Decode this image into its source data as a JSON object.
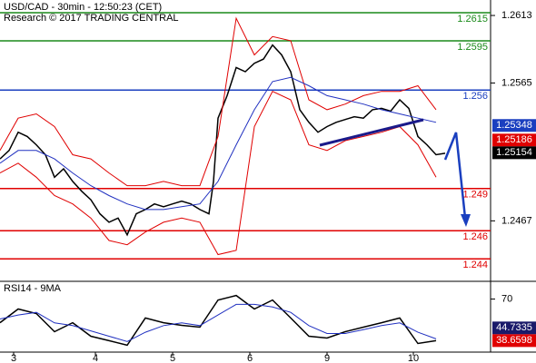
{
  "chart_data": [
    {
      "type": "line",
      "title": "USD/CAD - 30min - 12:50:23 (CET)",
      "subtitle": "Research © 2017 TRADING CENTRAL",
      "xlim": [
        0,
        108
      ],
      "ylim": [
        1.2424,
        1.2624
      ],
      "yticks": [
        1.2613,
        1.2565,
        1.2467
      ],
      "series": [
        {
          "name": "Price",
          "color": "#000000",
          "x": [
            0,
            2,
            4,
            6,
            8,
            10,
            12,
            14,
            16,
            18,
            20,
            22,
            24,
            26,
            28,
            30,
            32,
            34,
            36,
            38,
            40,
            42,
            44,
            46,
            47,
            48,
            50,
            52,
            54,
            56,
            58,
            60,
            62,
            64,
            66,
            68,
            70,
            72,
            74,
            76,
            78,
            80,
            82,
            84,
            86,
            88,
            90,
            92,
            94,
            96,
            98
          ],
          "values": [
            1.2511,
            1.2517,
            1.253,
            1.2527,
            1.2521,
            1.2514,
            1.2498,
            1.2504,
            1.2495,
            1.2488,
            1.2482,
            1.2472,
            1.2466,
            1.2469,
            1.2457,
            1.2472,
            1.2475,
            1.2479,
            1.2477,
            1.2479,
            1.2481,
            1.2479,
            1.2475,
            1.2472,
            1.2495,
            1.254,
            1.2556,
            1.2576,
            1.2573,
            1.2579,
            1.2582,
            1.2592,
            1.2585,
            1.2573,
            1.2546,
            1.2537,
            1.253,
            1.2534,
            1.2537,
            1.2539,
            1.2541,
            1.254,
            1.2546,
            1.2547,
            1.2545,
            1.2553,
            1.2547,
            1.2527,
            1.2521,
            1.2514,
            1.2515
          ]
        },
        {
          "name": "Upper band",
          "color": "#e00000",
          "x": [
            0,
            4,
            8,
            12,
            16,
            20,
            24,
            28,
            32,
            36,
            40,
            44,
            48,
            52,
            56,
            60,
            64,
            68,
            72,
            76,
            80,
            84,
            88,
            92,
            96
          ],
          "values": [
            1.2517,
            1.254,
            1.2543,
            1.2534,
            1.2514,
            1.2511,
            1.2501,
            1.2492,
            1.2492,
            1.2495,
            1.2492,
            1.2492,
            1.2527,
            1.2611,
            1.2585,
            1.2598,
            1.2595,
            1.2553,
            1.2546,
            1.255,
            1.2556,
            1.2559,
            1.2559,
            1.2563,
            1.2546
          ]
        },
        {
          "name": "Lower band",
          "color": "#e00000",
          "x": [
            0,
            4,
            8,
            12,
            16,
            20,
            24,
            28,
            32,
            36,
            40,
            44,
            48,
            52,
            56,
            60,
            64,
            68,
            72,
            76,
            80,
            84,
            88,
            92,
            96
          ],
          "values": [
            1.2501,
            1.2508,
            1.2498,
            1.2485,
            1.2479,
            1.2469,
            1.2453,
            1.245,
            1.2459,
            1.2466,
            1.2469,
            1.2466,
            1.2443,
            1.2446,
            1.2534,
            1.2559,
            1.2553,
            1.2521,
            1.2517,
            1.2524,
            1.2527,
            1.253,
            1.2534,
            1.2521,
            1.2498
          ]
        },
        {
          "name": "Moving average",
          "color": "#2030c0",
          "x": [
            0,
            4,
            8,
            12,
            16,
            20,
            24,
            28,
            32,
            36,
            40,
            44,
            48,
            52,
            56,
            60,
            64,
            68,
            72,
            76,
            80,
            84,
            88,
            92,
            96
          ],
          "values": [
            1.2508,
            1.2517,
            1.2517,
            1.2511,
            1.2501,
            1.2492,
            1.2485,
            1.2479,
            1.2475,
            1.2475,
            1.2477,
            1.2479,
            1.2495,
            1.2521,
            1.2546,
            1.2566,
            1.2569,
            1.2563,
            1.2556,
            1.2553,
            1.255,
            1.2546,
            1.2543,
            1.254,
            1.2537
          ]
        }
      ],
      "levels": [
        {
          "value": 1.2615,
          "color": "#1a8a1a"
        },
        {
          "value": 1.2595,
          "color": "#1a8a1a"
        },
        {
          "value": 1.256,
          "color": "#1a3fbf"
        },
        {
          "value": 1.249,
          "color": "#e00000"
        },
        {
          "value": 1.246,
          "color": "#e00000"
        },
        {
          "value": 1.244,
          "color": "#e00000"
        }
      ],
      "price_tags": [
        {
          "value": 1.25348,
          "color": "#1a3fbf"
        },
        {
          "value": 1.25186,
          "color": "#e00000"
        },
        {
          "value": 1.25154,
          "color": "#000000"
        }
      ]
    },
    {
      "type": "line",
      "title": "RSI14 - 9MA",
      "xlim": [
        0,
        108
      ],
      "ylim": [
        30,
        82
      ],
      "yticks": [
        70
      ],
      "xticks": [
        {
          "value": 3,
          "label": "3"
        },
        {
          "value": 21,
          "label": "4"
        },
        {
          "value": 38,
          "label": "5"
        },
        {
          "value": 55,
          "label": "6"
        },
        {
          "value": 72,
          "label": "9"
        },
        {
          "value": 91,
          "label": "10"
        }
      ],
      "series": [
        {
          "name": "RSI14",
          "color": "#000000",
          "x": [
            0,
            4,
            8,
            12,
            16,
            20,
            24,
            28,
            32,
            36,
            40,
            44,
            48,
            52,
            56,
            60,
            64,
            68,
            72,
            76,
            80,
            84,
            88,
            92,
            96
          ],
          "values": [
            52.2,
            62.5,
            59.1,
            45.4,
            52.2,
            42.0,
            38.6,
            35.2,
            55.7,
            52.2,
            50.2,
            48.8,
            69.3,
            72.7,
            62.5,
            69.3,
            55.7,
            42.0,
            40.6,
            45.4,
            48.8,
            52.2,
            55.7,
            36.5,
            38.6
          ]
        },
        {
          "name": "9MA",
          "color": "#2030c0",
          "x": [
            0,
            4,
            8,
            12,
            16,
            20,
            24,
            28,
            32,
            36,
            40,
            44,
            48,
            52,
            56,
            60,
            64,
            68,
            72,
            76,
            80,
            84,
            88,
            92,
            96
          ],
          "values": [
            55,
            58,
            60,
            52,
            50,
            46,
            42,
            38,
            45,
            50,
            52,
            50,
            58,
            66,
            66,
            64,
            60,
            50,
            44,
            44,
            47,
            50,
            52,
            45,
            40
          ]
        }
      ],
      "price_tags": [
        {
          "value": 44.7335,
          "color": "#1a1a6a"
        },
        {
          "value": 38.6598,
          "color": "#e00000"
        }
      ]
    }
  ]
}
